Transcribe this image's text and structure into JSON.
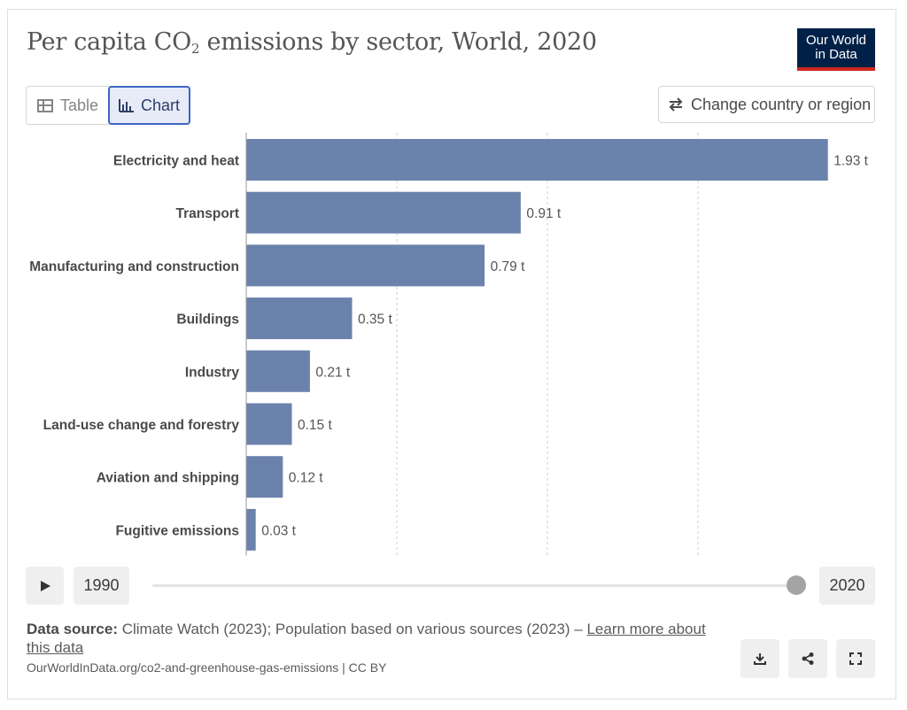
{
  "header": {
    "title_main": "Per capita CO",
    "title_sub": "2",
    "title_rest": " emissions by sector, World, 2020",
    "logo_line1": "Our World",
    "logo_line2": "in Data"
  },
  "tabs": [
    {
      "label": "Table",
      "icon": "table-icon",
      "active": false
    },
    {
      "label": "Chart",
      "icon": "bar-chart-icon",
      "active": true
    }
  ],
  "change_region_label": "Change country or region",
  "chart_data": {
    "type": "bar",
    "orientation": "horizontal",
    "categories": [
      "Electricity and heat",
      "Transport",
      "Manufacturing and construction",
      "Buildings",
      "Industry",
      "Land-use change and forestry",
      "Aviation and shipping",
      "Fugitive emissions"
    ],
    "values": [
      1.93,
      0.91,
      0.79,
      0.35,
      0.21,
      0.15,
      0.12,
      0.03
    ],
    "value_labels": [
      "1.93 t",
      "0.91 t",
      "0.79 t",
      "0.35 t",
      "0.21 t",
      "0.15 t",
      "0.12 t",
      "0.03 t"
    ],
    "unit": "t",
    "xlim": [
      0,
      2.0
    ],
    "gridlines": [
      0.5,
      1.0,
      1.5
    ],
    "grid": true,
    "bar_color": "#6b82ad"
  },
  "timeline": {
    "start_year": "1990",
    "end_year": "2020",
    "position": 1.0
  },
  "footer": {
    "source_label": "Data source:",
    "source_text": " Climate Watch (2023); Population based on various sources (2023) – ",
    "learn_more": "Learn more about this data",
    "url_text": "OurWorldInData.org/co2-and-greenhouse-gas-emissions | CC BY"
  }
}
